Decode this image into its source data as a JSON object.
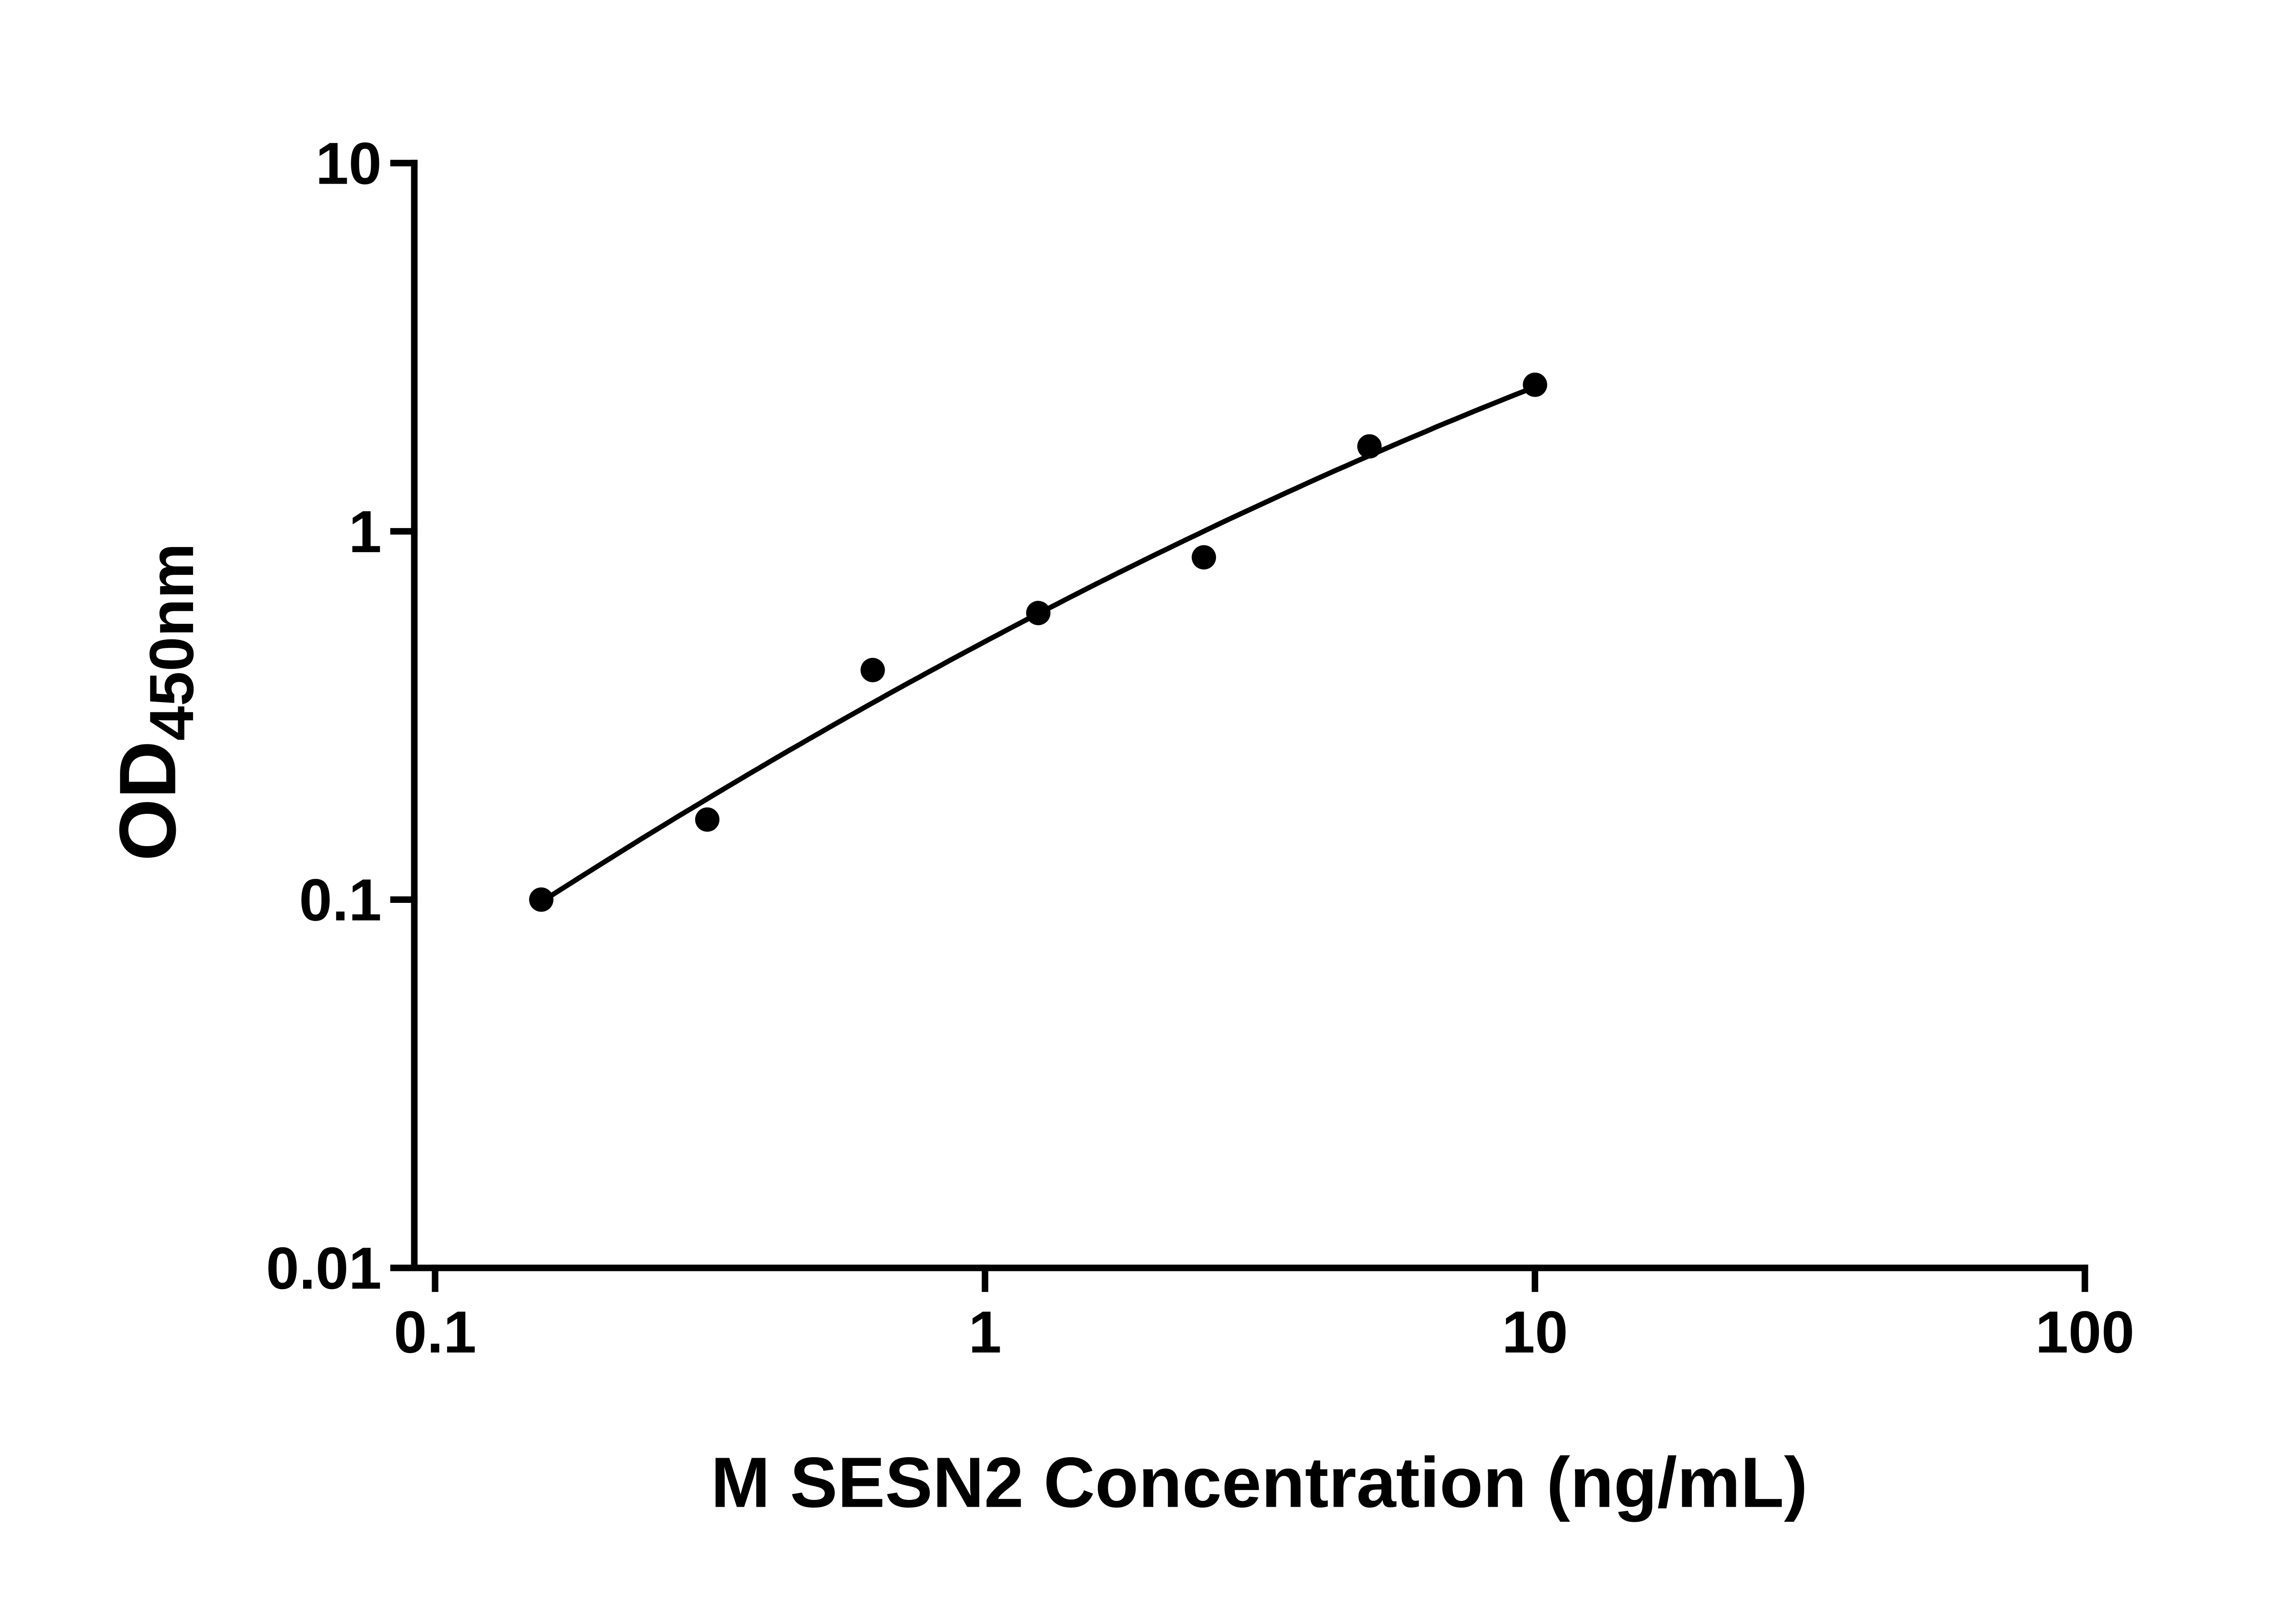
{
  "page": {
    "background": "#ffffff"
  },
  "chart_data": {
    "type": "scatter",
    "xlabel": "M SESN2 Concentration (ng/mL)",
    "ylabel": "OD450nm",
    "ylabel_main": "OD",
    "ylabel_subscript": "450nm",
    "x_scale": "log10",
    "y_scale": "log10",
    "xlim": [
      0.1,
      100
    ],
    "ylim": [
      0.01,
      10
    ],
    "grid": false,
    "x": [
      0.156,
      0.3125,
      0.625,
      1.25,
      2.5,
      5,
      10
    ],
    "y": [
      0.1,
      0.165,
      0.42,
      0.6,
      0.85,
      1.7,
      2.5
    ],
    "x_ticks": [
      {
        "value": 0.1,
        "label": "0.1"
      },
      {
        "value": 1,
        "label": "1"
      },
      {
        "value": 10,
        "label": "10"
      },
      {
        "value": 100,
        "label": "100"
      }
    ],
    "y_ticks": [
      {
        "value": 0.01,
        "label": "0.01"
      },
      {
        "value": 0.1,
        "label": "0.1"
      },
      {
        "value": 1,
        "label": "1"
      },
      {
        "value": 10,
        "label": "10"
      }
    ],
    "marker": {
      "shape": "circle",
      "color": "#000000"
    },
    "line": {
      "type": "fit-curve",
      "color": "#000000"
    }
  }
}
